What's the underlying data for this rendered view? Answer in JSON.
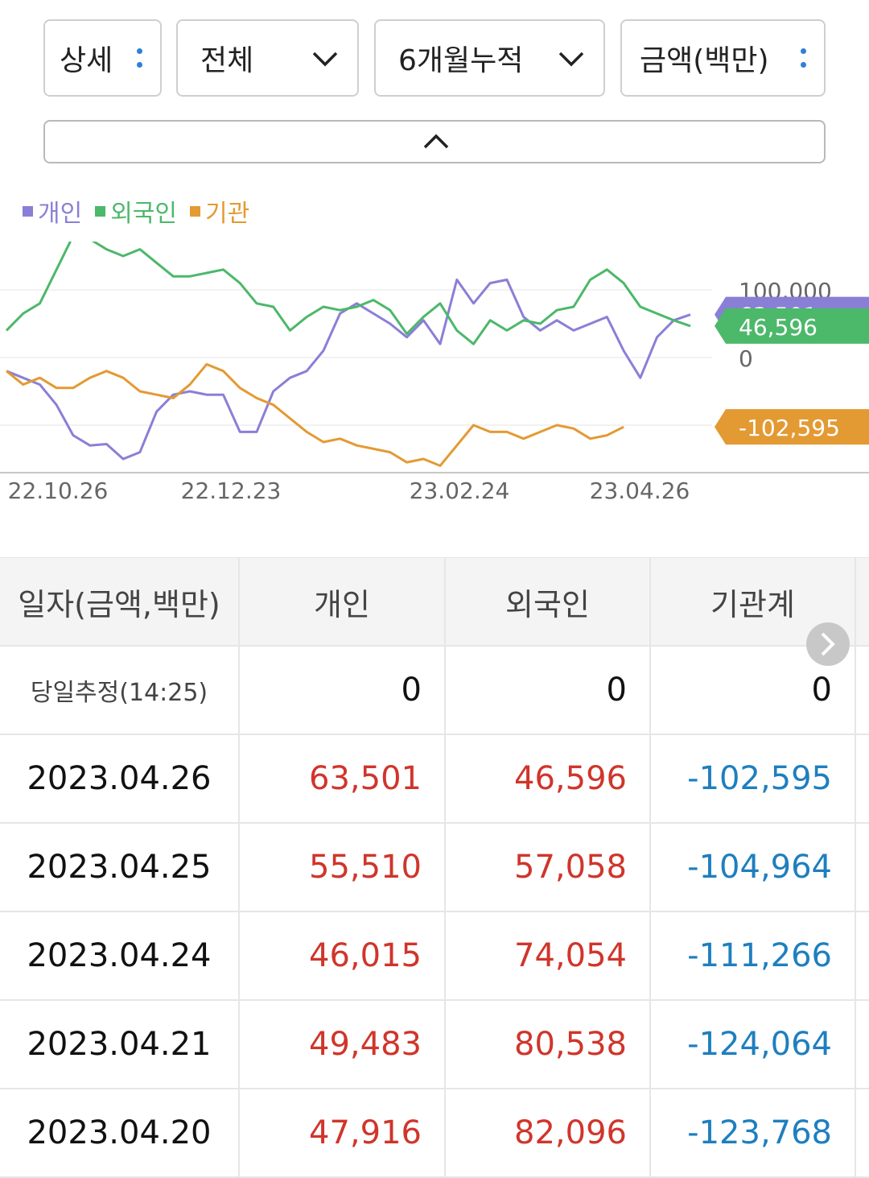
{
  "controls": {
    "detail_label": "상세",
    "scope_label": "전체",
    "period_label": "6개월누적",
    "unit_label": "금액(백만)"
  },
  "legend": [
    {
      "name": "개인",
      "color": "#8a7fd6"
    },
    {
      "name": "외국인",
      "color": "#4cb86a"
    },
    {
      "name": "기관",
      "color": "#e39a33"
    }
  ],
  "chart_data": {
    "type": "line",
    "x_ticks": [
      "22.10.26",
      "22.12.23",
      "23.02.24",
      "23.04.26"
    ],
    "y_ticks": [
      "100,000",
      "0"
    ],
    "ylim": [
      -195000,
      205000
    ],
    "grid": true,
    "value_labels": {
      "개인": "63,501",
      "외국인": "46,596",
      "기관": "-102,595"
    },
    "series": [
      {
        "name": "개인",
        "color": "#8a7fd6",
        "points": [
          [
            0,
            -20000
          ],
          [
            6,
            -30000
          ],
          [
            12,
            -40000
          ],
          [
            18,
            -70000
          ],
          [
            24,
            -115000
          ],
          [
            30,
            -130000
          ],
          [
            36,
            -128000
          ],
          [
            42,
            -150000
          ],
          [
            48,
            -140000
          ],
          [
            54,
            -80000
          ],
          [
            60,
            -55000
          ],
          [
            66,
            -50000
          ],
          [
            72,
            -55000
          ],
          [
            78,
            -55000
          ],
          [
            84,
            -110000
          ],
          [
            90,
            -110000
          ],
          [
            96,
            -50000
          ],
          [
            102,
            -30000
          ],
          [
            108,
            -20000
          ],
          [
            114,
            10000
          ],
          [
            120,
            65000
          ],
          [
            126,
            80000
          ],
          [
            132,
            65000
          ],
          [
            138,
            50000
          ],
          [
            144,
            30000
          ],
          [
            150,
            55000
          ],
          [
            156,
            20000
          ],
          [
            162,
            115000
          ],
          [
            168,
            80000
          ],
          [
            174,
            110000
          ],
          [
            180,
            115000
          ],
          [
            186,
            60000
          ],
          [
            192,
            40000
          ],
          [
            198,
            55000
          ],
          [
            204,
            40000
          ],
          [
            210,
            50000
          ],
          [
            216,
            60000
          ],
          [
            222,
            10000
          ],
          [
            228,
            -30000
          ],
          [
            234,
            30000
          ],
          [
            240,
            55000
          ],
          [
            246,
            63501
          ]
        ]
      },
      {
        "name": "외국인",
        "color": "#4cb86a",
        "points": [
          [
            0,
            40000
          ],
          [
            6,
            65000
          ],
          [
            12,
            80000
          ],
          [
            18,
            130000
          ],
          [
            24,
            180000
          ],
          [
            30,
            175000
          ],
          [
            36,
            160000
          ],
          [
            42,
            150000
          ],
          [
            48,
            160000
          ],
          [
            54,
            140000
          ],
          [
            60,
            120000
          ],
          [
            66,
            120000
          ],
          [
            72,
            125000
          ],
          [
            78,
            130000
          ],
          [
            84,
            110000
          ],
          [
            90,
            80000
          ],
          [
            96,
            75000
          ],
          [
            102,
            40000
          ],
          [
            108,
            60000
          ],
          [
            114,
            75000
          ],
          [
            120,
            70000
          ],
          [
            126,
            75000
          ],
          [
            132,
            85000
          ],
          [
            138,
            70000
          ],
          [
            144,
            35000
          ],
          [
            150,
            60000
          ],
          [
            156,
            80000
          ],
          [
            162,
            40000
          ],
          [
            168,
            20000
          ],
          [
            174,
            55000
          ],
          [
            180,
            40000
          ],
          [
            186,
            55000
          ],
          [
            192,
            50000
          ],
          [
            198,
            70000
          ],
          [
            204,
            75000
          ],
          [
            210,
            115000
          ],
          [
            216,
            130000
          ],
          [
            222,
            110000
          ],
          [
            228,
            75000
          ],
          [
            234,
            65000
          ],
          [
            240,
            55000
          ],
          [
            246,
            46596
          ]
        ]
      },
      {
        "name": "기관",
        "color": "#e39a33",
        "points": [
          [
            0,
            -20000
          ],
          [
            6,
            -40000
          ],
          [
            12,
            -30000
          ],
          [
            18,
            -45000
          ],
          [
            24,
            -45000
          ],
          [
            30,
            -30000
          ],
          [
            36,
            -20000
          ],
          [
            42,
            -30000
          ],
          [
            48,
            -50000
          ],
          [
            54,
            -55000
          ],
          [
            60,
            -60000
          ],
          [
            66,
            -40000
          ],
          [
            72,
            -10000
          ],
          [
            78,
            -20000
          ],
          [
            84,
            -45000
          ],
          [
            90,
            -60000
          ],
          [
            96,
            -70000
          ],
          [
            102,
            -90000
          ],
          [
            108,
            -110000
          ],
          [
            114,
            -125000
          ],
          [
            120,
            -120000
          ],
          [
            126,
            -130000
          ],
          [
            132,
            -135000
          ],
          [
            138,
            -140000
          ],
          [
            144,
            -155000
          ],
          [
            150,
            -150000
          ],
          [
            156,
            -160000
          ],
          [
            162,
            -130000
          ],
          [
            168,
            -100000
          ],
          [
            174,
            -110000
          ],
          [
            180,
            -110000
          ],
          [
            186,
            -120000
          ],
          [
            192,
            -110000
          ],
          [
            198,
            -100000
          ],
          [
            204,
            -105000
          ],
          [
            210,
            -120000
          ],
          [
            216,
            -115000
          ],
          [
            222,
            -102595
          ]
        ]
      }
    ]
  },
  "table": {
    "headers": [
      "일자(금액,백만)",
      "개인",
      "외국인",
      "기관계"
    ],
    "estimate_row": {
      "label": "당일추정(14:25)",
      "values": [
        "0",
        "0",
        "0"
      ]
    },
    "rows": [
      {
        "date": "2023.04.26",
        "individual": "63,501",
        "foreign": "46,596",
        "institution": "-102,595"
      },
      {
        "date": "2023.04.25",
        "individual": "55,510",
        "foreign": "57,058",
        "institution": "-104,964"
      },
      {
        "date": "2023.04.24",
        "individual": "46,015",
        "foreign": "74,054",
        "institution": "-111,266"
      },
      {
        "date": "2023.04.21",
        "individual": "49,483",
        "foreign": "80,538",
        "institution": "-124,064"
      },
      {
        "date": "2023.04.20",
        "individual": "47,916",
        "foreign": "82,096",
        "institution": "-123,768"
      }
    ]
  }
}
